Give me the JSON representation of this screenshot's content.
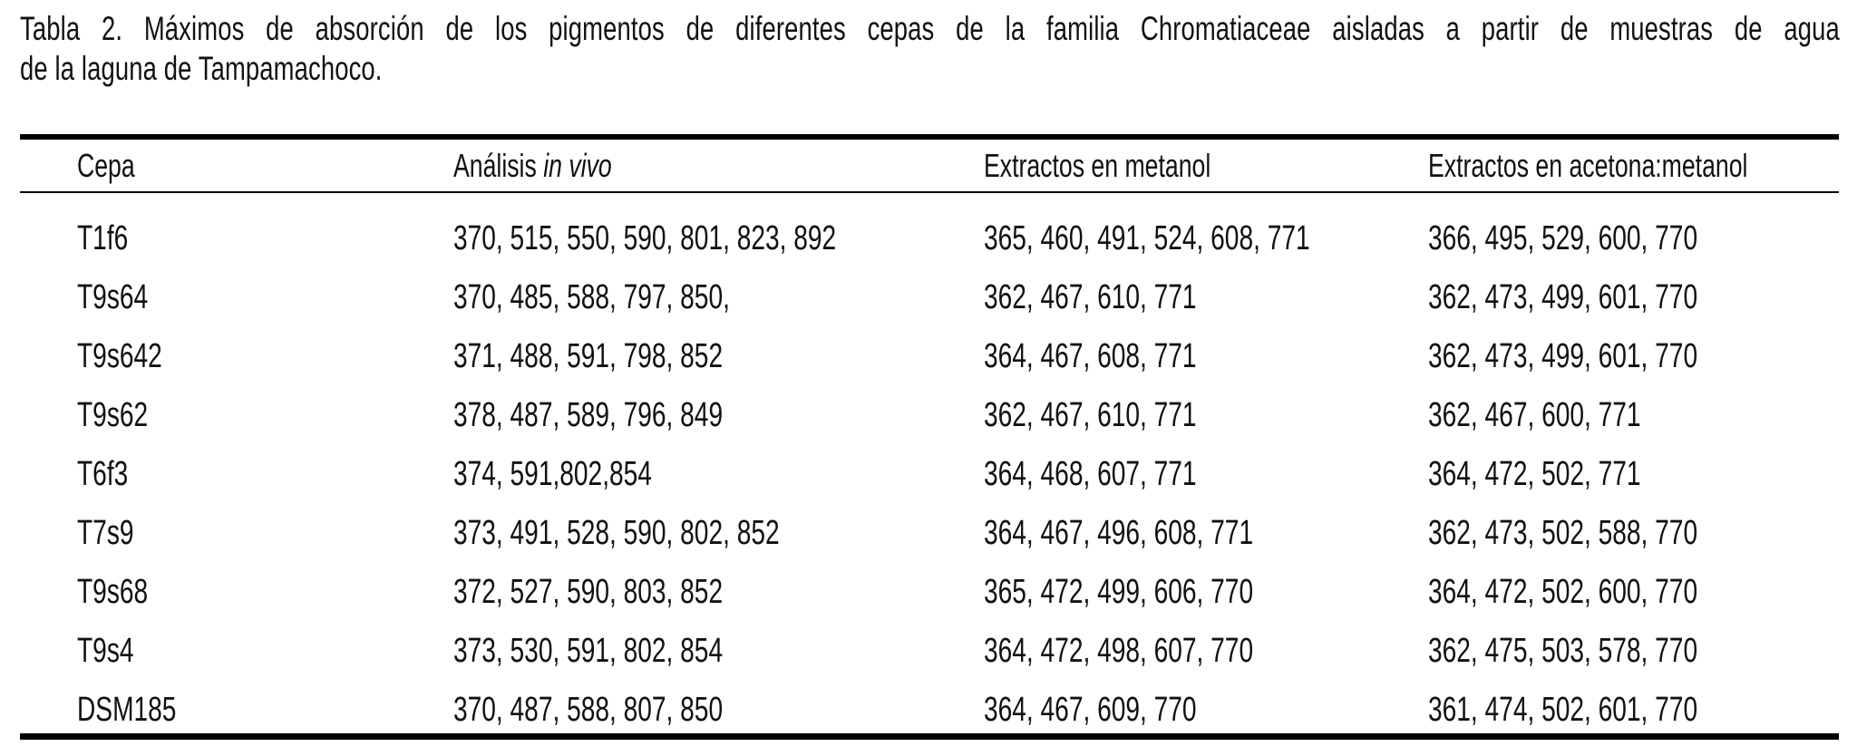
{
  "caption": {
    "line1": "Tabla 2. Máximos de absorción de los pigmentos de diferentes cepas de la familia Chromatiaceae aisladas a partir de muestras de agua",
    "line2": "de la laguna de Tampamachoco."
  },
  "table": {
    "headers": {
      "col1": "Cepa",
      "col2_prefix": "Análisis ",
      "col2_italic": "in vivo",
      "col3": "Extractos en metanol",
      "col4": "Extractos en acetona:metanol"
    },
    "rows": [
      {
        "cepa": "T1f6",
        "in_vivo": "370, 515, 550, 590, 801, 823, 892",
        "metanol": "365, 460, 491, 524, 608, 771",
        "acetona_metanol": "366, 495, 529, 600, 770"
      },
      {
        "cepa": "T9s64",
        "in_vivo": "370, 485, 588, 797, 850,",
        "metanol": "362, 467, 610, 771",
        "acetona_metanol": "362, 473, 499, 601, 770"
      },
      {
        "cepa": "T9s642",
        "in_vivo": "371, 488, 591, 798, 852",
        "metanol": "364, 467, 608, 771",
        "acetona_metanol": "362, 473, 499, 601, 770"
      },
      {
        "cepa": "T9s62",
        "in_vivo": "378, 487, 589, 796, 849",
        "metanol": "362, 467, 610, 771",
        "acetona_metanol": "362, 467, 600, 771"
      },
      {
        "cepa": "T6f3",
        "in_vivo": "374, 591,802,854",
        "metanol": "364, 468, 607, 771",
        "acetona_metanol": "364, 472, 502, 771"
      },
      {
        "cepa": "T7s9",
        "in_vivo": "373, 491, 528, 590, 802, 852",
        "metanol": "364, 467, 496, 608, 771",
        "acetona_metanol": "362, 473, 502, 588, 770"
      },
      {
        "cepa": "T9s68",
        "in_vivo": "372, 527, 590, 803, 852",
        "metanol": "365, 472, 499, 606, 770",
        "acetona_metanol": "364, 472, 502, 600, 770"
      },
      {
        "cepa": "T9s4",
        "in_vivo": "373, 530, 591, 802, 854",
        "metanol": "364, 472, 498, 607, 770",
        "acetona_metanol": "362, 475, 503, 578, 770"
      },
      {
        "cepa": "DSM185",
        "in_vivo": "370, 487, 588, 807, 850",
        "metanol": "364, 467, 609, 770",
        "acetona_metanol": "361, 474, 502, 601, 770"
      }
    ]
  },
  "colors": {
    "background": "#ffffff",
    "text": "#111111",
    "rule": "#000000"
  }
}
